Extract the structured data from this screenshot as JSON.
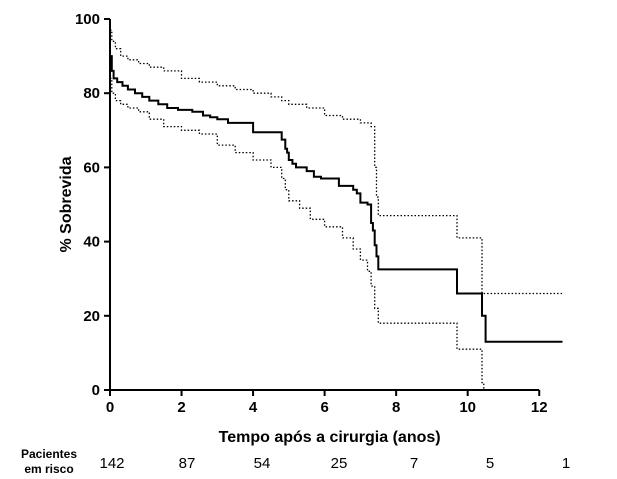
{
  "chart_data": {
    "type": "line",
    "subtype": "kaplan-meier survival curve with 95% confidence band",
    "xlabel": "Tempo após a cirurgia (anos)",
    "ylabel": "% Sobrevida",
    "xlim": [
      0,
      13
    ],
    "ylim": [
      0,
      100
    ],
    "x_ticks": [
      0,
      2,
      4,
      6,
      8,
      10,
      12
    ],
    "y_ticks": [
      0,
      20,
      40,
      60,
      80,
      100
    ],
    "grid": false,
    "legend": "none",
    "series": [
      {
        "style": "solid",
        "color": "#000000",
        "x": [
          0,
          0.05,
          0.1,
          0.2,
          0.35,
          0.5,
          0.7,
          0.9,
          1.1,
          1.35,
          1.6,
          1.9,
          2.3,
          2.6,
          2.8,
          3.0,
          3.3,
          4.0,
          4.8,
          4.9,
          4.95,
          5.0,
          5.1,
          5.2,
          5.5,
          5.7,
          5.9,
          6.4,
          6.8,
          6.9,
          7.0,
          7.2,
          7.3,
          7.35,
          7.4,
          7.45,
          7.5,
          9.6,
          9.7,
          10.3,
          10.4,
          10.5,
          12.65
        ],
        "y": [
          90,
          86,
          84,
          83,
          82,
          81,
          80,
          79,
          78,
          77,
          76,
          75.5,
          75,
          74,
          73.5,
          73,
          72,
          69.5,
          67.5,
          65,
          64,
          62,
          61,
          60,
          59,
          57.5,
          57,
          55,
          54,
          53,
          50.5,
          50,
          45,
          43,
          39,
          36,
          32.5,
          32.5,
          26,
          26,
          20,
          13,
          13
        ]
      },
      {
        "style": "dotted",
        "color": "#000000",
        "x": [
          0,
          0.05,
          0.15,
          0.3,
          0.5,
          0.8,
          1.1,
          1.5,
          2.0,
          2.5,
          3.0,
          3.5,
          4.0,
          4.5,
          4.8,
          5.0,
          5.5,
          6.0,
          6.5,
          7.0,
          7.3,
          7.4,
          7.45,
          7.5,
          9.6,
          9.7,
          10.3,
          10.4,
          10.5,
          12.65
        ],
        "y": [
          97,
          94,
          92,
          90,
          89,
          88,
          87,
          86,
          84,
          83,
          82,
          81,
          80,
          79,
          78,
          77,
          76,
          74,
          73,
          72,
          71,
          60,
          52,
          47,
          47,
          41,
          41,
          26,
          26,
          26
        ]
      },
      {
        "style": "dotted",
        "color": "#000000",
        "x": [
          0,
          0.05,
          0.15,
          0.3,
          0.5,
          0.8,
          1.1,
          1.5,
          2.0,
          2.5,
          3.0,
          3.5,
          4.0,
          4.5,
          4.8,
          4.9,
          5.0,
          5.3,
          5.6,
          6.0,
          6.5,
          6.8,
          7.0,
          7.2,
          7.3,
          7.4,
          7.5,
          9.6,
          9.7,
          10.3,
          10.4,
          10.45
        ],
        "y": [
          84,
          80,
          78,
          77,
          76,
          75,
          73,
          71,
          70,
          69,
          66,
          64,
          62,
          60,
          57,
          54,
          51,
          49,
          46,
          44,
          41,
          38,
          35,
          32,
          28,
          22,
          18,
          18,
          11,
          11,
          2,
          0
        ]
      }
    ],
    "at_risk": {
      "title_line1": "Pacientes",
      "title_line2": "em risco",
      "counts": [
        "142",
        "87",
        "54",
        "25",
        "7",
        "5",
        "1"
      ]
    }
  }
}
